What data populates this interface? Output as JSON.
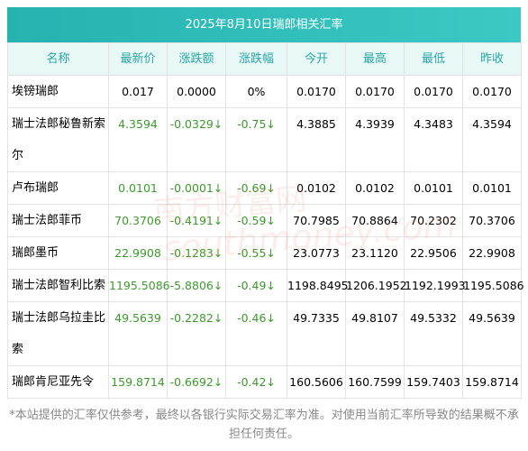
{
  "title": "2025年8月10日瑞郎相关汇率",
  "table": {
    "header": [
      "名称",
      "最新价",
      "涨跌额",
      "涨跌幅",
      "今开",
      "最高",
      "最低",
      "昨收"
    ],
    "rows": [
      [
        "埃镑瑞郎",
        "0.017",
        "0.0000",
        "0%",
        "0.0170",
        "0.0170",
        "0.0170",
        "0.0170"
      ],
      [
        "瑞士法郎秘鲁新索尔",
        "4.3594",
        "-0.0329↓",
        "-0.75↓",
        "4.3885",
        "4.3939",
        "4.3483",
        "4.3594"
      ],
      [
        "卢布瑞郎",
        "0.0101",
        "-0.0001↓",
        "-0.69↓",
        "0.0102",
        "0.0102",
        "0.0101",
        "0.0101"
      ],
      [
        "瑞士法郎菲币",
        "70.3706",
        "-0.4191↓",
        "-0.59↓",
        "70.7985",
        "70.8864",
        "70.2302",
        "70.3706"
      ],
      [
        "瑞郎墨币",
        "22.9908",
        "-0.1283↓",
        "-0.55↓",
        "23.0773",
        "23.1120",
        "22.9506",
        "22.9908"
      ],
      [
        "瑞士法郎智利比索",
        "1195.5086",
        "-5.8806↓",
        "-0.49↓",
        "1198.8495",
        "1206.1952",
        "1192.1993",
        "1195.5086"
      ],
      [
        "瑞士法郎乌拉圭比索",
        "49.5639",
        "-0.2282↓",
        "-0.46↓",
        "49.7335",
        "49.8107",
        "49.5332",
        "49.5639"
      ],
      [
        "瑞郎肯尼亚先令",
        "159.8714",
        "-0.6692↓",
        "-0.42↓",
        "160.5606",
        "160.7599",
        "159.7403",
        "159.8714"
      ]
    ]
  },
  "watermark": {
    "cn": "南方财富网",
    "en": "southmoney.com"
  },
  "footer": "*本站提供的汇率仅供参考，最终以各银行实际交易汇率为准。对使用当前汇率所导致的结果概不承担任何责任。"
}
